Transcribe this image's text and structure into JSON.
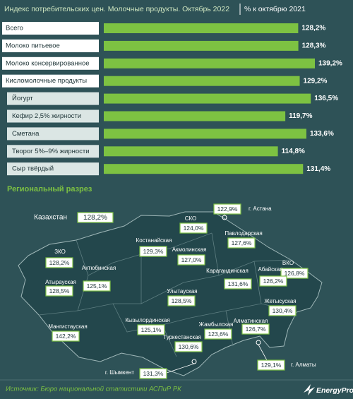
{
  "chart_data": {
    "type": "bar",
    "orientation": "horizontal",
    "title": "Индекс потребительских цен. Молочные продукты. Октябрь 2022",
    "subtitle": "% к октябрю 2021",
    "categories": [
      "Всего",
      "Молоко питьевое",
      "Молоко консервированное",
      "Кисломолочные продукты",
      "Йогурт",
      "Кефир 2,5% жирности",
      "Сметана",
      "Творог 5%–9% жирности",
      "Сыр твёрдый"
    ],
    "values": [
      128.2,
      128.3,
      139.2,
      129.2,
      136.5,
      119.7,
      133.6,
      114.8,
      131.4
    ],
    "value_labels": [
      "128,2%",
      "128,3%",
      "139,2%",
      "129,2%",
      "136,5%",
      "119,7%",
      "133,6%",
      "114,8%",
      "131,4%"
    ],
    "color": "#7dc242"
  },
  "regional": {
    "title": "Региональный разрез",
    "regions": [
      {
        "name": "Казахстан",
        "value": 128.2,
        "value_label": "128,2%"
      },
      {
        "name": "г. Астана",
        "value": 122.9,
        "value_label": "122,9%"
      },
      {
        "name": "СКО",
        "value": 124.0,
        "value_label": "124,0%"
      },
      {
        "name": "Павлодарская",
        "value": 127.6,
        "value_label": "127,6%"
      },
      {
        "name": "Костанайская",
        "value": 129.3,
        "value_label": "129,3%"
      },
      {
        "name": "Акмолинская",
        "value": 127.0,
        "value_label": "127,0%"
      },
      {
        "name": "ЗКО",
        "value": 128.2,
        "value_label": "128,2%"
      },
      {
        "name": "ВКО",
        "value": 126.8,
        "value_label": "126,8%"
      },
      {
        "name": "Актюбинская",
        "value": 125.1,
        "value_label": "125,1%"
      },
      {
        "name": "Атырауская",
        "value": 128.5,
        "value_label": "128,5%"
      },
      {
        "name": "Карагандинская",
        "value": 131.6,
        "value_label": "131,6%"
      },
      {
        "name": "Абайская",
        "value": 126.2,
        "value_label": "126,2%"
      },
      {
        "name": "Улытауская",
        "value": 128.5,
        "value_label": "128,5%"
      },
      {
        "name": "Жетысуская",
        "value": 130.4,
        "value_label": "130,4%"
      },
      {
        "name": "Мангистауская",
        "value": 142.2,
        "value_label": "142,2%"
      },
      {
        "name": "Кызылординская",
        "value": 125.1,
        "value_label": "125,1%"
      },
      {
        "name": "Жамбылская",
        "value": 123.6,
        "value_label": "123,6%"
      },
      {
        "name": "Алматинская",
        "value": 126.7,
        "value_label": "126,7%"
      },
      {
        "name": "Туркестанская",
        "value": 130.6,
        "value_label": "130,6%"
      },
      {
        "name": "г. Алматы",
        "value": 129.1,
        "value_label": "129,1%"
      },
      {
        "name": "г. Шымкент",
        "value": 131.3,
        "value_label": "131,3%"
      }
    ]
  },
  "footer": {
    "source": "Источник: Бюро национальной статистики АСПиР РК",
    "brand": "EnergyProm"
  }
}
